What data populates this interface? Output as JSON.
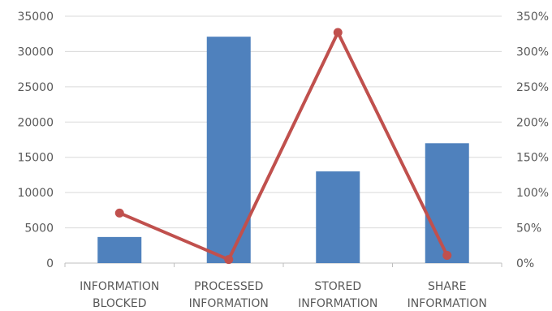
{
  "chart_data": {
    "type": "bar",
    "categories": [
      [
        "INFORMATION",
        "BLOCKED"
      ],
      [
        "PROCESSED",
        "INFORMATION"
      ],
      [
        "STORED",
        "INFORMATION"
      ],
      [
        "SHARE",
        "INFORMATION"
      ]
    ],
    "series": [
      {
        "type": "bar",
        "axis": "left",
        "color": "#4f81bd",
        "values": [
          3700,
          32100,
          13000,
          17000
        ]
      },
      {
        "type": "line",
        "axis": "right",
        "color": "#c0504d",
        "values": [
          0.71,
          0.05,
          3.27,
          0.11
        ]
      }
    ],
    "ylim": [
      0,
      35000
    ],
    "y_ticks": [
      "0",
      "5000",
      "10000",
      "15000",
      "20000",
      "25000",
      "30000",
      "35000"
    ],
    "y2lim": [
      0,
      3.5
    ],
    "y2_ticks": [
      "0%",
      "50%",
      "100%",
      "150%",
      "200%",
      "250%",
      "300%",
      "350%"
    ],
    "grid": true,
    "gridline_color": "#d9d9d9",
    "axis_color": "#bfbfbf"
  }
}
